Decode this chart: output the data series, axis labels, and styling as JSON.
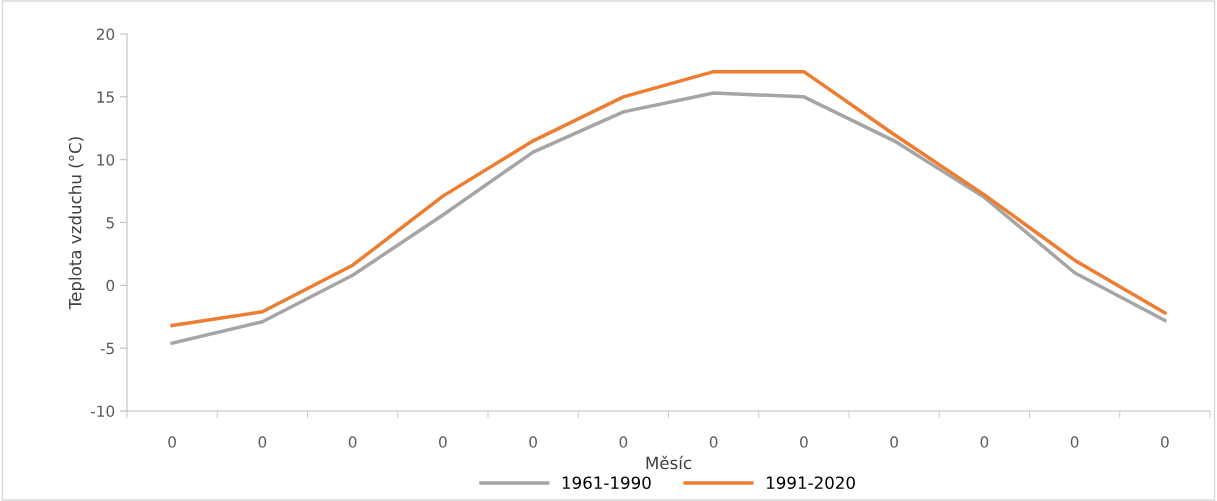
{
  "chart_data": {
    "type": "line",
    "xlabel": "Měsíc",
    "ylabel": "Teplota vzduchu (°C)",
    "categories": [
      "0",
      "0",
      "0",
      "0",
      "0",
      "0",
      "0",
      "0",
      "0",
      "0",
      "0",
      "0"
    ],
    "series": [
      {
        "name": "1961-1990",
        "color": "#a5a5a5",
        "values": [
          -4.6,
          -2.9,
          0.8,
          5.6,
          10.6,
          13.8,
          15.3,
          15.0,
          11.5,
          7.0,
          1.0,
          -2.8
        ]
      },
      {
        "name": "1991-2020",
        "color": "#ed7d31",
        "values": [
          -3.2,
          -2.1,
          1.6,
          7.1,
          11.5,
          15.0,
          17.0,
          17.0,
          12.0,
          7.2,
          2.0,
          -2.2
        ]
      }
    ],
    "ylim": [
      -10,
      20
    ],
    "yticks": [
      -10,
      -5,
      0,
      5,
      10,
      15,
      20
    ],
    "grid": false,
    "legend": "bottom",
    "marker": "none",
    "line_style": "solid"
  }
}
